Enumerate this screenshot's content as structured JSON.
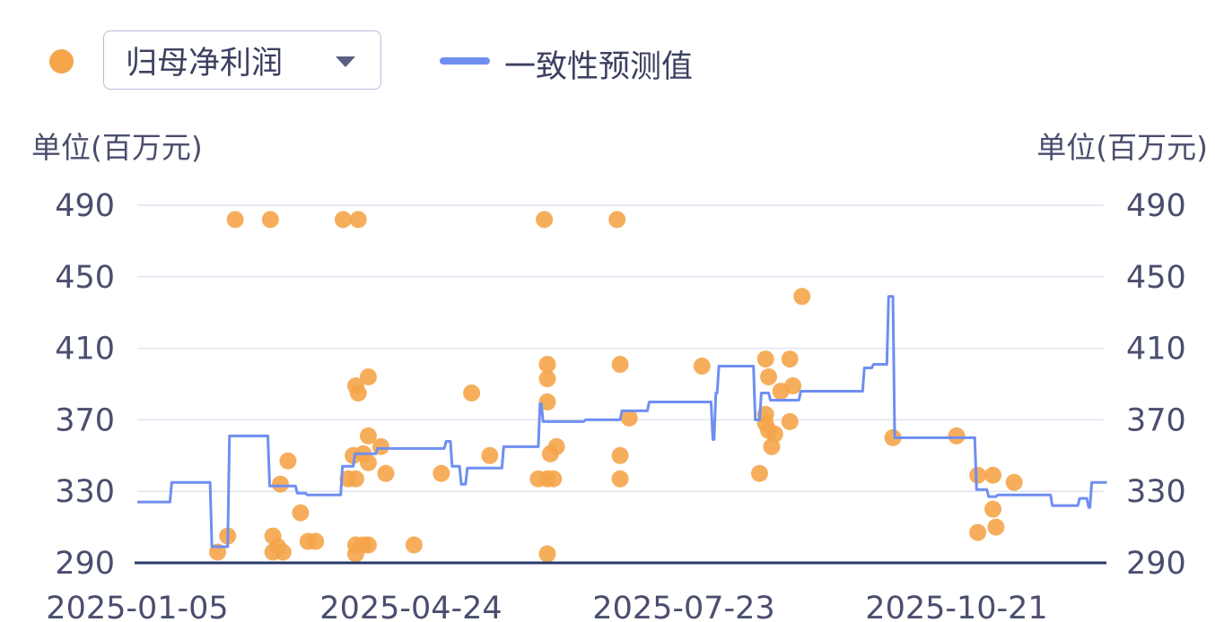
{
  "legend": {
    "scatter_icon": "circle-dot",
    "dropdown_value": "归母净利润",
    "dropdown_icon": "triangle-down-icon",
    "line_label": "一致性预测值"
  },
  "colors": {
    "scatter": "#f5a54a",
    "line": "#6f8ef0",
    "axis": "#2b3a6b",
    "grid": "#dfe4ef"
  },
  "chart_data": {
    "type": "scatter+line",
    "ylabel_left": "单位(百万元)",
    "ylabel_right": "单位(百万元)",
    "ylim": [
      290,
      490
    ],
    "yticks": [
      "290",
      "330",
      "370",
      "410",
      "450",
      "490"
    ],
    "xticks": [
      "2025-01-05",
      "2025-04-24",
      "2025-07-23",
      "2025-10-21"
    ],
    "xlim": [
      "2025-01-05",
      "2025-12-09"
    ],
    "grid": true,
    "legend_placement": "top-left",
    "series": [
      {
        "name": "归母净利润",
        "type": "scatter",
        "points": [
          [
            "2025-02-13",
            482
          ],
          [
            "2025-02-27",
            482
          ],
          [
            "2025-03-28",
            482
          ],
          [
            "2025-04-03",
            482
          ],
          [
            "2025-06-07",
            482
          ],
          [
            "2025-07-01",
            482
          ],
          [
            "2025-02-06",
            296
          ],
          [
            "2025-02-10",
            305
          ],
          [
            "2025-02-28",
            305
          ],
          [
            "2025-03-02",
            299
          ],
          [
            "2025-03-04",
            296
          ],
          [
            "2025-02-28",
            296
          ],
          [
            "2025-03-03",
            334
          ],
          [
            "2025-03-06",
            347
          ],
          [
            "2025-03-11",
            318
          ],
          [
            "2025-03-14",
            302
          ],
          [
            "2025-03-17",
            302
          ],
          [
            "2025-03-30",
            337
          ],
          [
            "2025-04-01",
            350
          ],
          [
            "2025-04-02",
            337
          ],
          [
            "2025-04-02",
            389
          ],
          [
            "2025-04-03",
            385
          ],
          [
            "2025-04-07",
            394
          ],
          [
            "2025-04-07",
            361
          ],
          [
            "2025-04-07",
            346
          ],
          [
            "2025-04-05",
            351
          ],
          [
            "2025-04-12",
            355
          ],
          [
            "2025-04-14",
            340
          ],
          [
            "2025-04-02",
            300
          ],
          [
            "2025-04-05",
            300
          ],
          [
            "2025-04-07",
            300
          ],
          [
            "2025-04-02",
            295
          ],
          [
            "2025-04-25",
            300
          ],
          [
            "2025-05-04",
            340
          ],
          [
            "2025-05-14",
            385
          ],
          [
            "2025-05-20",
            350
          ],
          [
            "2025-06-05",
            337
          ],
          [
            "2025-06-08",
            337
          ],
          [
            "2025-06-10",
            337
          ],
          [
            "2025-06-08",
            401
          ],
          [
            "2025-06-08",
            393
          ],
          [
            "2025-06-08",
            380
          ],
          [
            "2025-06-09",
            351
          ],
          [
            "2025-06-11",
            355
          ],
          [
            "2025-06-08",
            295
          ],
          [
            "2025-07-02",
            337
          ],
          [
            "2025-07-02",
            350
          ],
          [
            "2025-07-02",
            401
          ],
          [
            "2025-07-05",
            371
          ],
          [
            "2025-07-29",
            400
          ],
          [
            "2025-08-17",
            340
          ],
          [
            "2025-08-19",
            404
          ],
          [
            "2025-08-20",
            394
          ],
          [
            "2025-08-19",
            373
          ],
          [
            "2025-08-19",
            368
          ],
          [
            "2025-08-20",
            364
          ],
          [
            "2025-08-21",
            355
          ],
          [
            "2025-08-22",
            362
          ],
          [
            "2025-08-24",
            386
          ],
          [
            "2025-08-27",
            404
          ],
          [
            "2025-08-28",
            389
          ],
          [
            "2025-08-27",
            369
          ],
          [
            "2025-08-31",
            439
          ],
          [
            "2025-09-30",
            360
          ],
          [
            "2025-10-21",
            361
          ],
          [
            "2025-10-28",
            339
          ],
          [
            "2025-11-02",
            339
          ],
          [
            "2025-11-09",
            335
          ],
          [
            "2025-11-02",
            320
          ],
          [
            "2025-10-28",
            307
          ],
          [
            "2025-11-03",
            310
          ]
        ]
      },
      {
        "name": "一致性预测值",
        "type": "line",
        "points": [
          [
            "2025-01-05",
            324
          ],
          [
            "2025-01-18",
            335
          ],
          [
            "2025-02-03",
            299
          ],
          [
            "2025-02-10",
            361
          ],
          [
            "2025-02-26",
            333
          ],
          [
            "2025-03-09",
            329
          ],
          [
            "2025-03-13",
            328
          ],
          [
            "2025-03-27",
            344
          ],
          [
            "2025-04-01",
            351
          ],
          [
            "2025-04-10",
            354
          ],
          [
            "2025-05-05",
            358
          ],
          [
            "2025-05-07",
            344
          ],
          [
            "2025-05-10",
            334
          ],
          [
            "2025-05-12",
            343
          ],
          [
            "2025-05-24",
            355
          ],
          [
            "2025-06-05",
            379
          ],
          [
            "2025-06-06",
            369
          ],
          [
            "2025-06-20",
            370
          ],
          [
            "2025-07-02",
            375
          ],
          [
            "2025-07-11",
            380
          ],
          [
            "2025-08-01",
            359
          ],
          [
            "2025-08-02",
            385
          ],
          [
            "2025-08-03",
            400
          ],
          [
            "2025-08-15",
            370
          ],
          [
            "2025-08-17",
            385
          ],
          [
            "2025-08-20",
            381
          ],
          [
            "2025-08-30",
            386
          ],
          [
            "2025-09-20",
            399
          ],
          [
            "2025-09-23",
            401
          ],
          [
            "2025-09-28",
            439
          ],
          [
            "2025-09-30",
            360
          ],
          [
            "2025-10-27",
            331
          ],
          [
            "2025-10-31",
            327
          ],
          [
            "2025-11-03",
            328
          ],
          [
            "2025-11-21",
            322
          ],
          [
            "2025-11-30",
            326
          ],
          [
            "2025-12-03",
            321
          ],
          [
            "2025-12-04",
            335
          ],
          [
            "2025-12-09",
            335
          ]
        ]
      }
    ]
  }
}
